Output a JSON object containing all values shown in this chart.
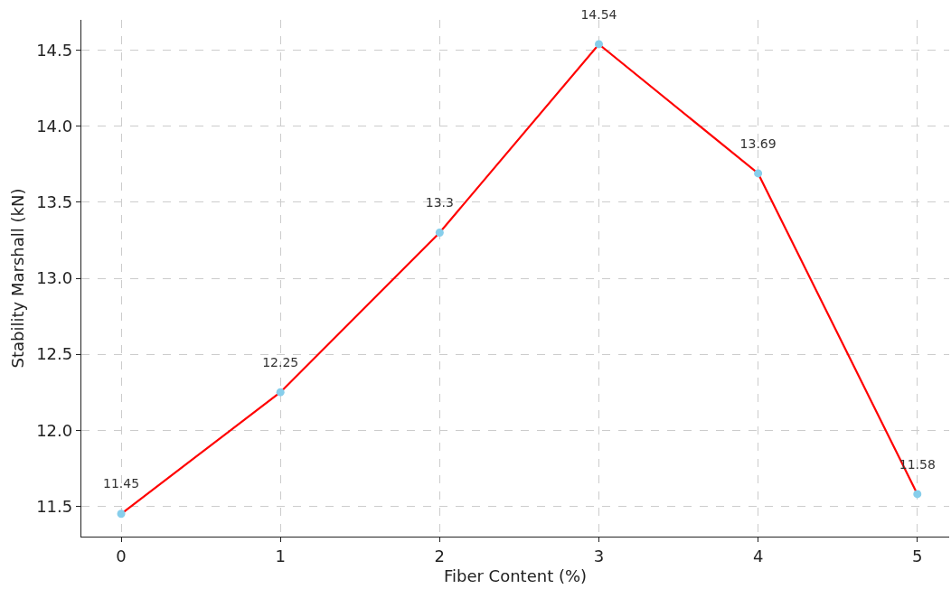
{
  "chart_data": {
    "type": "line",
    "xlabel": "Fiber Content (%)",
    "ylabel": "Stability Marshall (kN)",
    "x": [
      0,
      1,
      2,
      3,
      4,
      5
    ],
    "series": [
      {
        "color": "#ff0000",
        "colors": [
          "#87ceeb",
          "#87ceeb",
          "#87ceeb",
          "#87ceeb",
          "#87ceeb",
          "#87ceeb"
        ],
        "values": [
          11.45,
          12.25,
          13.3,
          14.54,
          13.69,
          11.58
        ]
      }
    ],
    "xlim": [
      -0.25,
      5.2
    ],
    "xticks": [
      0,
      1,
      2,
      3,
      4,
      5
    ],
    "ylim": [
      11.3,
      14.7
    ],
    "yticks": [
      {
        "value": 11.5,
        "label": "11.5"
      },
      {
        "value": 12.0,
        "label": "12.0"
      },
      {
        "value": 12.5,
        "label": "12.5"
      },
      {
        "value": 13.0,
        "label": "13.0"
      },
      {
        "value": 13.5,
        "label": "13.5"
      },
      {
        "value": 14.0,
        "label": "14.0"
      },
      {
        "value": 14.5,
        "label": "14.5"
      }
    ],
    "grid": true,
    "marker": "circle",
    "line_style": "solid",
    "data_labels": true
  }
}
